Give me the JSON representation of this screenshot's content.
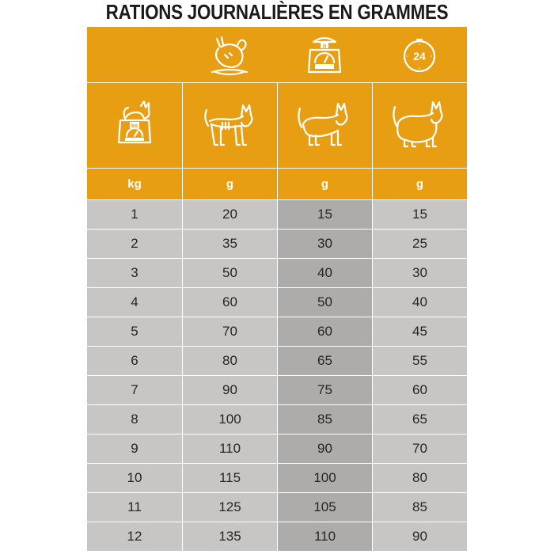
{
  "title": "RATIONS JOURNALIÈRES EN GRAMMES",
  "icons": {
    "col2": "eating-cat-icon",
    "col3": "food-scale-icon",
    "col4": "24-hour-clock-icon",
    "col1_cat_row": "cat-on-scale-icon",
    "col2_cat_row": "thin-cat-icon",
    "col3_cat_row": "normal-cat-icon",
    "col4_cat_row": "overweight-cat-icon"
  },
  "scale_icon_text": "g",
  "scale_cat_text": "kg",
  "clock_text": "24",
  "units": [
    "kg",
    "g",
    "g",
    "g"
  ],
  "rows": [
    [
      "1",
      "20",
      "15",
      "15"
    ],
    [
      "2",
      "35",
      "30",
      "25"
    ],
    [
      "3",
      "50",
      "40",
      "30"
    ],
    [
      "4",
      "60",
      "50",
      "40"
    ],
    [
      "5",
      "70",
      "60",
      "45"
    ],
    [
      "6",
      "80",
      "65",
      "55"
    ],
    [
      "7",
      "90",
      "75",
      "60"
    ],
    [
      "8",
      "100",
      "85",
      "65"
    ],
    [
      "9",
      "110",
      "90",
      "70"
    ],
    [
      "10",
      "115",
      "100",
      "80"
    ],
    [
      "11",
      "125",
      "105",
      "85"
    ],
    [
      "12",
      "135",
      "110",
      "90"
    ]
  ],
  "colors": {
    "header": "#e89e12",
    "cell": "#c7c6c4",
    "highlight_column": "#aeacaa"
  }
}
